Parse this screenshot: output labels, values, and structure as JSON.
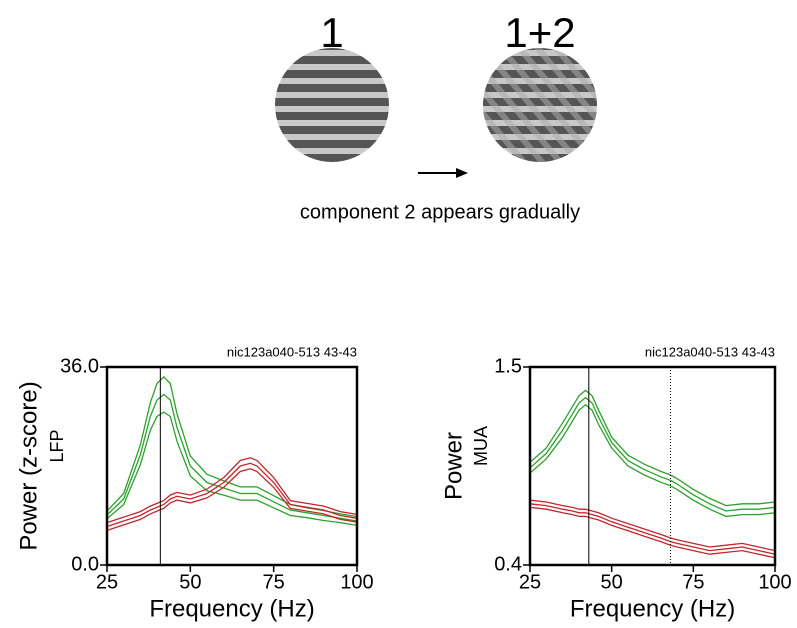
{
  "stimulus": {
    "labels": [
      "1",
      "1+2"
    ],
    "caption": "component 2 appears gradually"
  },
  "chart_data": [
    {
      "type": "line",
      "title": "nic123a040-513 43-43",
      "ylabel": "Power (z-score)",
      "ylabel2": "LFP",
      "xlabel": "Frequency (Hz)",
      "xlim": [
        25,
        100
      ],
      "xticks": [
        25,
        50,
        75,
        100
      ],
      "ylim": [
        0,
        36
      ],
      "yticks": [
        {
          "value": 0,
          "label": "0.0"
        },
        {
          "value": 36,
          "label": "36.0"
        }
      ],
      "x": [
        25,
        30,
        35,
        38,
        40,
        42,
        44,
        46,
        50,
        55,
        60,
        65,
        68,
        70,
        75,
        80,
        85,
        90,
        95,
        100
      ],
      "vlines": [
        {
          "x": 41,
          "style": "solid"
        }
      ],
      "series": [
        {
          "color": "#2ca02c",
          "values": [
            9.8,
            13,
            21.8,
            29.5,
            33,
            34.2,
            33,
            27.5,
            19.8,
            16.5,
            15.3,
            14.2,
            14.2,
            14.2,
            12.6,
            11,
            10.4,
            9.9,
            9.3,
            8.8
          ]
        },
        {
          "color": "#2ca02c",
          "values": [
            9.1,
            12,
            20,
            27,
            30,
            31,
            30,
            25,
            18,
            15,
            14,
            13,
            13,
            13,
            11.5,
            10,
            9.5,
            9,
            8.5,
            8
          ]
        },
        {
          "color": "#2ca02c",
          "values": [
            8.4,
            11,
            18.2,
            24.5,
            27,
            27.8,
            27,
            22.5,
            16.2,
            13.5,
            12.7,
            11.8,
            11.8,
            11.8,
            10.4,
            9,
            8.6,
            8.1,
            7.7,
            7.2
          ]
        },
        {
          "color": "#c0272d",
          "values": [
            7.7,
            8.7,
            9.7,
            10.7,
            11.2,
            11.7,
            12.7,
            13.2,
            12.7,
            13.8,
            15.9,
            19,
            19.5,
            19,
            15.9,
            11.7,
            11.2,
            10.7,
            9.7,
            9.2
          ]
        },
        {
          "color": "#c0272d",
          "values": [
            7,
            8,
            9,
            10,
            10.5,
            11,
            12,
            12.5,
            12,
            13,
            15,
            18,
            18.5,
            18,
            15,
            11,
            10.5,
            10,
            9,
            8.5
          ]
        },
        {
          "color": "#c0272d",
          "values": [
            6.3,
            7.3,
            8.3,
            9.3,
            9.8,
            10.3,
            11.3,
            11.8,
            11.3,
            12.2,
            14.1,
            17,
            17.5,
            17,
            14.1,
            10.3,
            9.8,
            9.3,
            8.3,
            7.8
          ]
        }
      ]
    },
    {
      "type": "line",
      "title": "nic123a040-513 43-43",
      "ylabel": "Power",
      "ylabel2": "MUA",
      "xlabel": "Frequency (Hz)",
      "xlim": [
        25,
        100
      ],
      "xticks": [
        25,
        50,
        75,
        100
      ],
      "ylim": [
        0.4,
        1.5
      ],
      "yticks": [
        0.4,
        1.5
      ],
      "x": [
        25,
        30,
        35,
        38,
        40,
        42,
        44,
        46,
        50,
        55,
        60,
        65,
        68,
        70,
        75,
        80,
        85,
        90,
        95,
        100
      ],
      "vlines": [
        {
          "x": 43,
          "style": "solid"
        },
        {
          "x": 68,
          "style": "dotted"
        }
      ],
      "series": [
        {
          "color": "#2ca02c",
          "values": [
            0.97,
            1.05,
            1.19,
            1.28,
            1.34,
            1.37,
            1.34,
            1.26,
            1.11,
            1.01,
            0.96,
            0.92,
            0.9,
            0.88,
            0.82,
            0.77,
            0.73,
            0.74,
            0.74,
            0.75
          ]
        },
        {
          "color": "#2ca02c",
          "values": [
            0.94,
            1.02,
            1.15,
            1.24,
            1.3,
            1.33,
            1.3,
            1.22,
            1.08,
            0.98,
            0.93,
            0.89,
            0.87,
            0.85,
            0.79,
            0.74,
            0.7,
            0.71,
            0.71,
            0.72
          ]
        },
        {
          "color": "#2ca02c",
          "values": [
            0.91,
            0.99,
            1.11,
            1.2,
            1.26,
            1.29,
            1.26,
            1.18,
            1.05,
            0.95,
            0.9,
            0.86,
            0.84,
            0.82,
            0.76,
            0.71,
            0.67,
            0.68,
            0.68,
            0.69
          ]
        },
        {
          "color": "#c0272d",
          "values": [
            0.76,
            0.75,
            0.73,
            0.72,
            0.71,
            0.71,
            0.7,
            0.69,
            0.66,
            0.63,
            0.6,
            0.57,
            0.55,
            0.54,
            0.52,
            0.5,
            0.51,
            0.52,
            0.5,
            0.48
          ]
        },
        {
          "color": "#c0272d",
          "values": [
            0.74,
            0.73,
            0.71,
            0.7,
            0.69,
            0.69,
            0.68,
            0.67,
            0.64,
            0.61,
            0.58,
            0.55,
            0.53,
            0.52,
            0.5,
            0.48,
            0.49,
            0.5,
            0.48,
            0.46
          ]
        },
        {
          "color": "#c0272d",
          "values": [
            0.72,
            0.71,
            0.69,
            0.68,
            0.67,
            0.67,
            0.66,
            0.65,
            0.62,
            0.59,
            0.56,
            0.53,
            0.51,
            0.5,
            0.48,
            0.46,
            0.47,
            0.48,
            0.46,
            0.44
          ]
        }
      ]
    }
  ]
}
